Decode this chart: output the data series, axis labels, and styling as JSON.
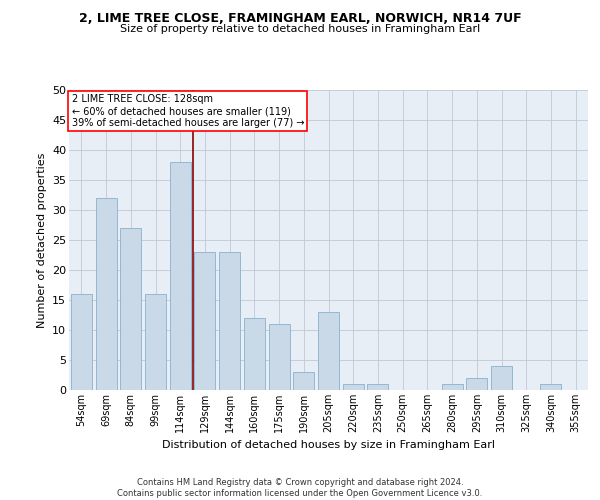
{
  "title1": "2, LIME TREE CLOSE, FRAMINGHAM EARL, NORWICH, NR14 7UF",
  "title2": "Size of property relative to detached houses in Framingham Earl",
  "xlabel": "Distribution of detached houses by size in Framingham Earl",
  "ylabel": "Number of detached properties",
  "categories": [
    "54sqm",
    "69sqm",
    "84sqm",
    "99sqm",
    "114sqm",
    "129sqm",
    "144sqm",
    "160sqm",
    "175sqm",
    "190sqm",
    "205sqm",
    "220sqm",
    "235sqm",
    "250sqm",
    "265sqm",
    "280sqm",
    "295sqm",
    "310sqm",
    "325sqm",
    "340sqm",
    "355sqm"
  ],
  "values": [
    16,
    32,
    27,
    16,
    38,
    23,
    23,
    12,
    11,
    3,
    13,
    1,
    1,
    0,
    0,
    1,
    2,
    4,
    0,
    1,
    0
  ],
  "bar_color": "#c9d9e8",
  "bar_edge_color": "#8ab0cc",
  "grid_color": "#c0c8d8",
  "bg_color": "#e8eef5",
  "ref_line_x": 4.5,
  "annotation_line1": "2 LIME TREE CLOSE: 128sqm",
  "annotation_line2": "← 60% of detached houses are smaller (119)",
  "annotation_line3": "39% of semi-detached houses are larger (77) →",
  "footer1": "Contains HM Land Registry data © Crown copyright and database right 2024.",
  "footer2": "Contains public sector information licensed under the Open Government Licence v3.0.",
  "ylim": [
    0,
    50
  ],
  "yticks": [
    0,
    5,
    10,
    15,
    20,
    25,
    30,
    35,
    40,
    45,
    50
  ]
}
